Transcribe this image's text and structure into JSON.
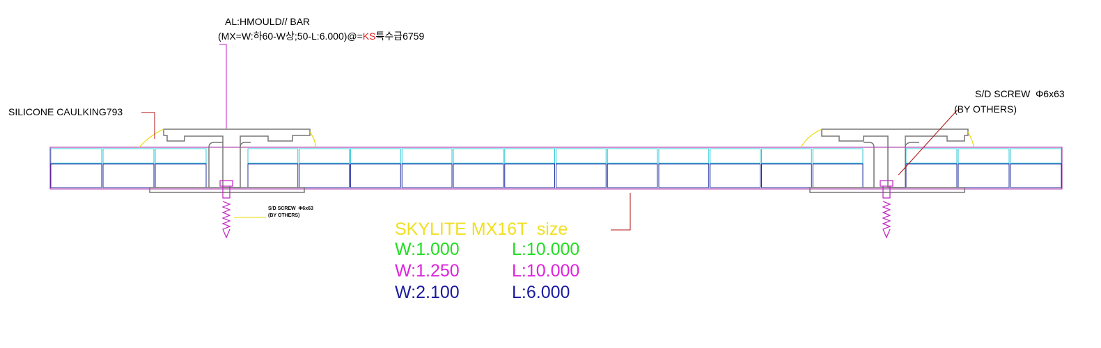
{
  "labels": {
    "bar_label": "AL:HMOULD// BAR",
    "bar_spec": {
      "before": "(MX=W:하60-W상;50-L:6.000)@=",
      "highlight": "KS",
      "after": "특수급6759"
    },
    "caulking": "SILICONE CAULKING793",
    "screw_right": {
      "line1": "S/D SCREW  Φ6x63",
      "line2": "(BY OTHERS)"
    },
    "screw_left": {
      "line1": "S/D SCREW  Φ6x63",
      "line2": "(BY OTHERS)"
    }
  },
  "legend": {
    "title": "SKYLITE MX16T  size",
    "rows": [
      {
        "w": "W:1.000",
        "l": "L:10.000",
        "color": "#22dd22"
      },
      {
        "w": "W:1.250",
        "l": "L:10.000",
        "color": "#dd22dd"
      },
      {
        "w": "W:2.100",
        "l": "L:6.000",
        "color": "#1a1aa0"
      }
    ]
  }
}
